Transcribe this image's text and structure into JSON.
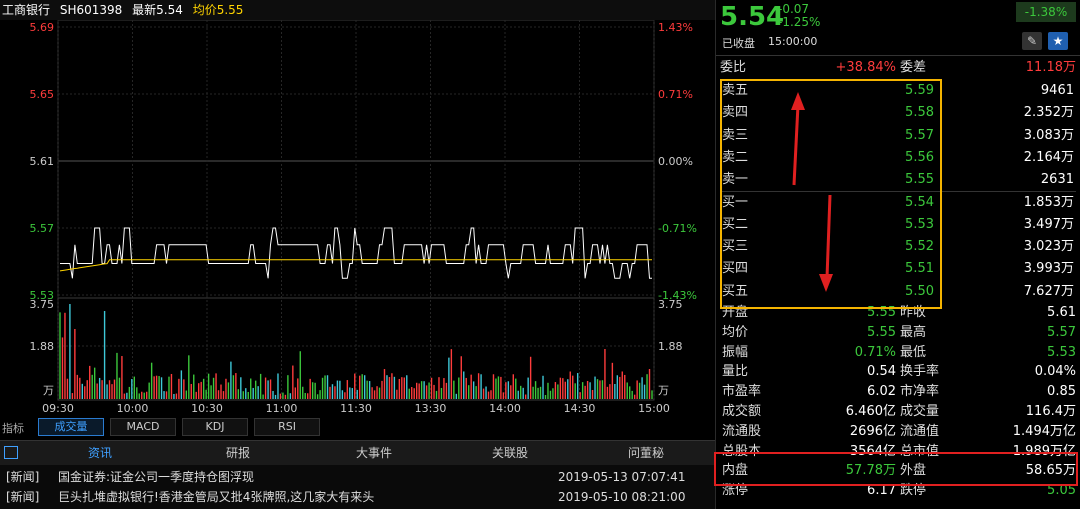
{
  "header": {
    "name": "工商银行",
    "code": "SH601398",
    "latest_label": "最新5.54",
    "avg_label": "均价5.55"
  },
  "y_left": [
    "5.69",
    "5.65",
    "5.61",
    "5.57",
    "5.53"
  ],
  "y_right": [
    "1.43%",
    "0.71%",
    "0.00%",
    "-0.71%",
    "-1.43%"
  ],
  "vol_left": [
    "3.75",
    "1.88",
    "万"
  ],
  "vol_right": [
    "3.75",
    "1.88",
    "万"
  ],
  "x_ticks": [
    "09:30",
    "10:00",
    "10:30",
    "11:00",
    "11:30",
    "13:30",
    "14:00",
    "14:30",
    "15:00"
  ],
  "indicator_label": "指标",
  "indicator_tabs": [
    "成交量",
    "MACD",
    "KDJ",
    "RSI"
  ],
  "news_tabs": [
    "资讯",
    "研报",
    "大事件",
    "关联股",
    "问董秘"
  ],
  "news": [
    {
      "tag": "[新闻]",
      "title": "国金证券:证金公司一季度持仓图浮现",
      "time": "2019-05-13 07:07:41"
    },
    {
      "tag": "[新闻]",
      "title": "巨头扎堆虚拟银行!香港金管局又批4张牌照,这几家大有来头",
      "time": "2019-05-10 08:21:00"
    }
  ],
  "quote": {
    "price": "5.54",
    "change": "-0.07",
    "change_pct": "-1.25%",
    "badge": "-1.38%",
    "status": "已收盘",
    "time": "15:00:00"
  },
  "weibi": {
    "label": "委比",
    "value": "+38.84%",
    "label2": "委差",
    "value2": "11.18万"
  },
  "asks": [
    {
      "label": "卖五",
      "price": "5.59",
      "vol": "9461"
    },
    {
      "label": "卖四",
      "price": "5.58",
      "vol": "2.352万"
    },
    {
      "label": "卖三",
      "price": "5.57",
      "vol": "3.083万"
    },
    {
      "label": "卖二",
      "price": "5.56",
      "vol": "2.164万"
    },
    {
      "label": "卖一",
      "price": "5.55",
      "vol": "2631"
    }
  ],
  "bids": [
    {
      "label": "买一",
      "price": "5.54",
      "vol": "1.853万"
    },
    {
      "label": "买二",
      "price": "5.53",
      "vol": "3.497万"
    },
    {
      "label": "买三",
      "price": "5.52",
      "vol": "3.023万"
    },
    {
      "label": "买四",
      "price": "5.51",
      "vol": "3.993万"
    },
    {
      "label": "买五",
      "price": "5.50",
      "vol": "7.627万"
    }
  ],
  "stats": [
    {
      "l1": "开盘",
      "v1": "5.55",
      "l2": "昨收",
      "v2": "5.61"
    },
    {
      "l1": "均价",
      "v1": "5.55",
      "l2": "最高",
      "v2": "5.57"
    },
    {
      "l1": "振幅",
      "v1": "0.71%",
      "l2": "最低",
      "v2": "5.53"
    },
    {
      "l1": "量比",
      "v1": "0.54",
      "l2": "换手率",
      "v2": "0.04%"
    },
    {
      "l1": "市盈率",
      "v1": "6.02",
      "l2": "市净率",
      "v2": "0.85"
    },
    {
      "l1": "成交额",
      "v1": "6.460亿",
      "l2": "成交量",
      "v2": "116.4万"
    },
    {
      "l1": "流通股",
      "v1": "2696亿",
      "l2": "流通值",
      "v2": "1.494万亿"
    },
    {
      "l1": "总股本",
      "v1": "3564亿",
      "l2": "总市值",
      "v2": "1.989万亿"
    },
    {
      "l1": "内盘",
      "v1": "57.78万",
      "l2": "外盘",
      "v2": "58.65万"
    },
    {
      "l1": "涨停",
      "v1": "6.17",
      "l2": "跌停",
      "v2": "5.05"
    }
  ],
  "colors": {
    "up": "#ff3c3c",
    "down": "#3cc83c",
    "price_line": "#ffffff",
    "avg_line": "#ffd400",
    "box_yellow": "#f5b400",
    "box_red": "#e02020"
  },
  "chart_data": {
    "type": "line",
    "title": "",
    "prev_close": 5.61,
    "ylim": [
      5.53,
      5.69
    ],
    "x": [
      "09:30",
      "10:00",
      "10:30",
      "11:00",
      "11:30",
      "13:30",
      "14:00",
      "14:30",
      "15:00"
    ],
    "series": [
      {
        "name": "最新",
        "values": [
          5.55,
          5.56,
          5.56,
          5.56,
          5.55,
          5.56,
          5.55,
          5.56,
          5.54
        ]
      },
      {
        "name": "均价",
        "values": [
          5.55,
          5.55,
          5.55,
          5.55,
          5.55,
          5.55,
          5.55,
          5.55,
          5.55
        ]
      }
    ]
  }
}
